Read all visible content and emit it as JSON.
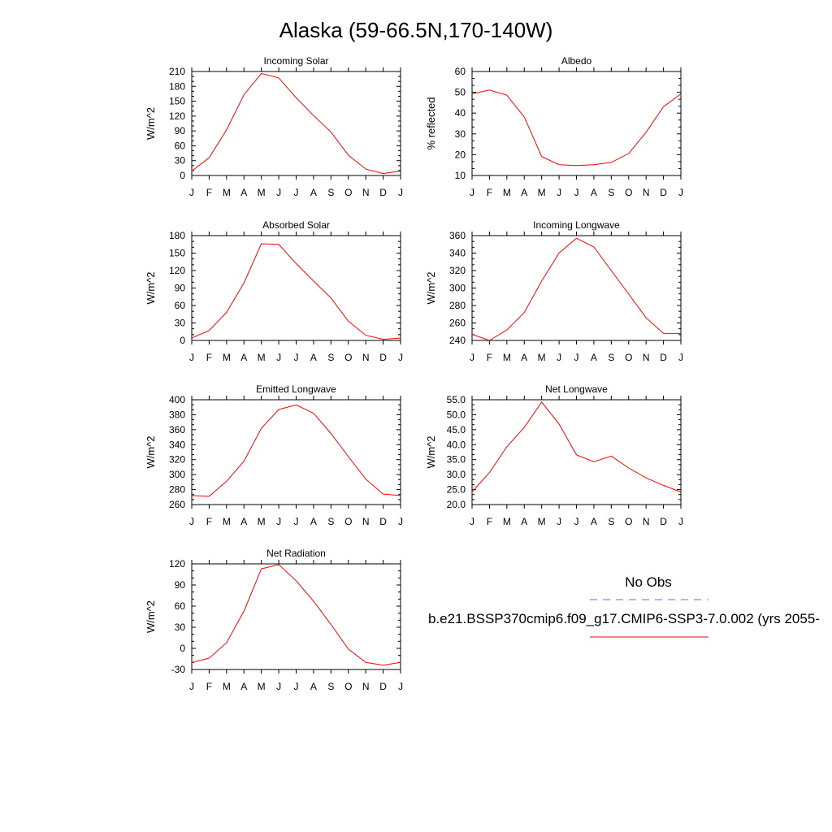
{
  "title": "Alaska (59-66.5N,170-140W)",
  "colors": {
    "model": "#ff0000",
    "obs": "#6b6bff",
    "axis": "#000000"
  },
  "months": [
    "J",
    "F",
    "M",
    "A",
    "M",
    "J",
    "J",
    "A",
    "S",
    "O",
    "N",
    "D",
    "J"
  ],
  "chart_data": [
    {
      "type": "line",
      "title": "Incoming Solar",
      "ylabel": "W/m^2",
      "ylim": [
        0,
        210
      ],
      "yticks": [
        "0",
        "30",
        "60",
        "90",
        "120",
        "150",
        "180",
        "210"
      ],
      "categories": [
        "J",
        "F",
        "M",
        "A",
        "M",
        "J",
        "J",
        "A",
        "S",
        "O",
        "N",
        "D",
        "J"
      ],
      "series": [
        {
          "values": [
            9,
            36,
            92,
            163,
            206,
            197,
            157,
            121,
            88,
            41,
            13,
            4,
            9
          ]
        }
      ]
    },
    {
      "type": "line",
      "title": "Albedo",
      "ylabel": "% reflected",
      "ylim": [
        10,
        60
      ],
      "yticks": [
        "10",
        "20",
        "30",
        "40",
        "50",
        "60"
      ],
      "categories": [
        "J",
        "F",
        "M",
        "A",
        "M",
        "J",
        "J",
        "A",
        "S",
        "O",
        "N",
        "D",
        "J"
      ],
      "series": [
        {
          "values": [
            49.2,
            51.1,
            48.6,
            38.1,
            19.1,
            15.2,
            14.8,
            15.2,
            16.3,
            20.6,
            30.8,
            43.1,
            49.2
          ]
        }
      ]
    },
    {
      "type": "line",
      "title": "Absorbed Solar",
      "ylabel": "W/m^2",
      "ylim": [
        0,
        180
      ],
      "yticks": [
        "0",
        "30",
        "60",
        "90",
        "120",
        "150",
        "180"
      ],
      "categories": [
        "J",
        "F",
        "M",
        "A",
        "M",
        "J",
        "J",
        "A",
        "S",
        "O",
        "N",
        "D",
        "J"
      ],
      "series": [
        {
          "values": [
            4,
            17,
            48,
            99,
            166,
            165,
            132,
            102,
            73,
            33,
            9,
            2,
            4
          ]
        }
      ]
    },
    {
      "type": "line",
      "title": "Incoming Longwave",
      "ylabel": "W/m^2",
      "ylim": [
        240,
        360
      ],
      "yticks": [
        "240",
        "260",
        "280",
        "300",
        "320",
        "340",
        "360"
      ],
      "categories": [
        "J",
        "F",
        "M",
        "A",
        "M",
        "J",
        "J",
        "A",
        "S",
        "O",
        "N",
        "D",
        "J"
      ],
      "series": [
        {
          "values": [
            247,
            240,
            252,
            272,
            308,
            340,
            357,
            347,
            320,
            293,
            266,
            248,
            248
          ]
        }
      ]
    },
    {
      "type": "line",
      "title": "Emitted Longwave",
      "ylabel": "W/m^2",
      "ylim": [
        260,
        400
      ],
      "yticks": [
        "260",
        "280",
        "300",
        "320",
        "340",
        "360",
        "380",
        "400"
      ],
      "categories": [
        "J",
        "F",
        "M",
        "A",
        "M",
        "J",
        "J",
        "A",
        "S",
        "O",
        "N",
        "D",
        "J"
      ],
      "series": [
        {
          "values": [
            272,
            271,
            291,
            318,
            362,
            387,
            393,
            382,
            355,
            324,
            294,
            274,
            272
          ]
        }
      ]
    },
    {
      "type": "line",
      "title": "Net Longwave",
      "ylabel": "W/m^2",
      "ylim": [
        20,
        55
      ],
      "yticks": [
        "20.0",
        "25.0",
        "30.0",
        "35.0",
        "40.0",
        "45.0",
        "50.0",
        "55.0"
      ],
      "categories": [
        "J",
        "F",
        "M",
        "A",
        "M",
        "J",
        "J",
        "A",
        "S",
        "O",
        "N",
        "D",
        "J"
      ],
      "series": [
        {
          "values": [
            24.2,
            30.7,
            39.3,
            45.8,
            54.2,
            46.9,
            36.6,
            34.3,
            36.2,
            32.2,
            28.9,
            26.4,
            24.2
          ]
        }
      ]
    },
    {
      "type": "line",
      "title": "Net Radiation",
      "ylabel": "W/m^2",
      "ylim": [
        -30,
        120
      ],
      "yticks": [
        "-30",
        "0",
        "30",
        "60",
        "90",
        "120"
      ],
      "categories": [
        "J",
        "F",
        "M",
        "A",
        "M",
        "J",
        "J",
        "A",
        "S",
        "O",
        "N",
        "D",
        "J"
      ],
      "series": [
        {
          "values": [
            -20,
            -14,
            8,
            53,
            113,
            119,
            96,
            67,
            34,
            -1,
            -20,
            -24,
            -20
          ]
        }
      ]
    }
  ],
  "legend": {
    "obs_label": "No Obs",
    "model_label": "b.e21.BSSP370cmip6.f09_g17.CMIP6-SSP3-7.0.002 (yrs 2055-"
  }
}
